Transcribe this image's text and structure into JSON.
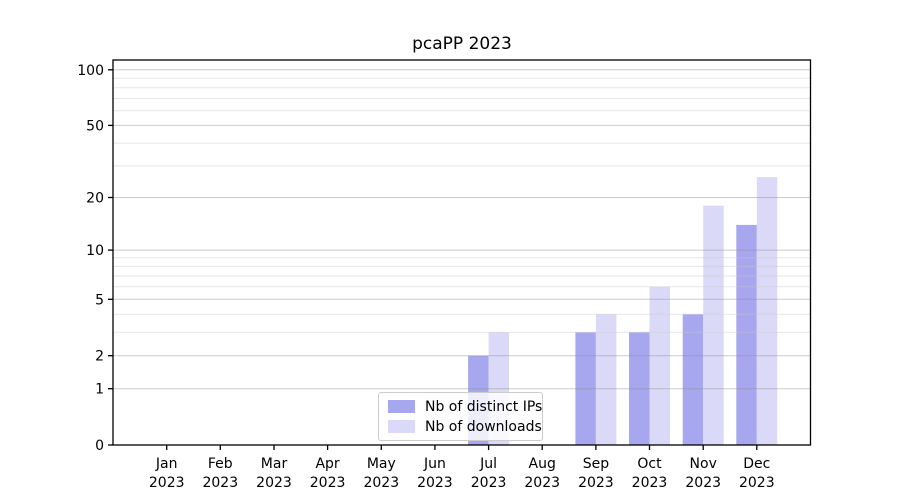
{
  "title": "pcaPP 2023",
  "colors": {
    "background": "#ffffff",
    "bar_ips": "#a7a7f0",
    "bar_downloads": "#dadaf8",
    "grid_major": "rgba(140,140,140,0.45)",
    "grid_minor": "rgba(200,200,200,0.45)",
    "axis": "#000000",
    "legend_border": "#cccccc"
  },
  "chart_data": {
    "type": "bar",
    "title": "pcaPP 2023",
    "x_months": [
      "Jan",
      "Feb",
      "Mar",
      "Apr",
      "May",
      "Jun",
      "Jul",
      "Aug",
      "Sep",
      "Oct",
      "Nov",
      "Dec"
    ],
    "x_year": "2023",
    "categories": [
      "Jan 2023",
      "Feb 2023",
      "Mar 2023",
      "Apr 2023",
      "May 2023",
      "Jun 2023",
      "Jul 2023",
      "Aug 2023",
      "Sep 2023",
      "Oct 2023",
      "Nov 2023",
      "Dec 2023"
    ],
    "series": [
      {
        "name": "Nb of distinct IPs",
        "color": "#a7a7f0",
        "values": [
          0,
          0,
          0,
          0,
          0,
          0,
          2,
          0,
          3,
          3,
          4,
          14
        ]
      },
      {
        "name": "Nb of downloads",
        "color": "#dadaf8",
        "values": [
          0,
          0,
          0,
          0,
          0,
          0,
          3,
          0,
          4,
          6,
          18,
          26
        ]
      }
    ],
    "yscale": "log1p",
    "ylim": [
      0,
      113
    ],
    "yticks_major": [
      0,
      1,
      2,
      5,
      10,
      20,
      50,
      100
    ],
    "yticks_minor": [
      3,
      4,
      6,
      7,
      8,
      9,
      30,
      40,
      60,
      70,
      80,
      90
    ],
    "grid": "horizontal",
    "legend_position": "lower-center-inside"
  }
}
